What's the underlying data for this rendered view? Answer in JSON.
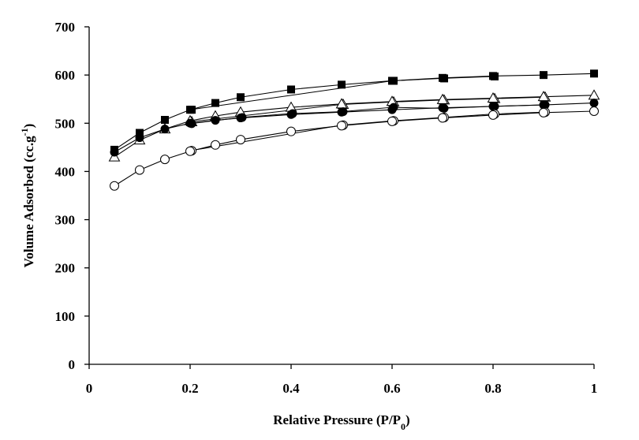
{
  "chart_data": {
    "type": "scatter",
    "title": "",
    "xlabel": "Relative Pressure (P/P",
    "xlabel_sub": "0",
    "xlabel_end": ")",
    "ylabel": "Volume Adsorbed (cc.g",
    "ylabel_sup": "-1",
    "ylabel_end": ")",
    "xlim": [
      0,
      1
    ],
    "ylim": [
      0,
      700
    ],
    "xticks": [
      0,
      0.2,
      0.4,
      0.6,
      0.8,
      1
    ],
    "xtick_labels": [
      "0",
      "0.2",
      "0.4",
      "0.6",
      "0.8",
      "1"
    ],
    "yticks": [
      0,
      100,
      200,
      300,
      400,
      500,
      600,
      700
    ],
    "ytick_labels": [
      "0",
      "100",
      "200",
      "300",
      "400",
      "500",
      "600",
      "700"
    ],
    "grid": false,
    "legend": "none",
    "series": [
      {
        "marker": "filled-square",
        "x": [
          0.05,
          0.1,
          0.15,
          0.2,
          0.25,
          0.3,
          0.4,
          0.5,
          0.6,
          0.7,
          0.8,
          0.9,
          1.0
        ],
        "y": [
          445,
          480,
          507,
          528,
          542,
          554,
          570,
          580,
          588,
          594,
          598,
          600,
          603
        ],
        "desorption_x": [
          0.2,
          0.6,
          0.7,
          0.8
        ],
        "desorption_y": [
          528,
          588,
          593,
          597
        ]
      },
      {
        "marker": "open-triangle",
        "x": [
          0.05,
          0.1,
          0.15,
          0.2,
          0.25,
          0.3,
          0.4,
          0.5,
          0.6,
          0.7,
          0.8,
          0.9,
          1.0
        ],
        "y": [
          430,
          465,
          488,
          505,
          515,
          523,
          533,
          540,
          545,
          549,
          552,
          555,
          558
        ],
        "desorption_x": [
          0.2,
          0.5,
          0.6,
          0.7,
          0.8,
          0.9
        ],
        "desorption_y": [
          503,
          539,
          544,
          548,
          551,
          554
        ]
      },
      {
        "marker": "filled-circle",
        "x": [
          0.05,
          0.1,
          0.15,
          0.2,
          0.25,
          0.3,
          0.4,
          0.5,
          0.6,
          0.7,
          0.8,
          0.9,
          1.0
        ],
        "y": [
          440,
          470,
          488,
          500,
          506,
          511,
          518,
          523,
          528,
          532,
          535,
          538,
          542
        ],
        "desorption_x": [
          0.2,
          0.3,
          0.4,
          0.5,
          0.6,
          0.7,
          0.8,
          0.9
        ],
        "desorption_y": [
          499,
          512,
          520,
          524,
          533,
          531,
          535,
          538
        ]
      },
      {
        "marker": "open-circle",
        "x": [
          0.05,
          0.1,
          0.15,
          0.2,
          0.25,
          0.3,
          0.4,
          0.5,
          0.6,
          0.7,
          0.8,
          0.9,
          1.0
        ],
        "y": [
          370,
          403,
          425,
          442,
          455,
          466,
          483,
          495,
          504,
          511,
          517,
          522,
          525
        ],
        "desorption_x": [
          0.2,
          0.5,
          0.6,
          0.7,
          0.8,
          0.9
        ],
        "desorption_y": [
          443,
          496,
          505,
          512,
          519,
          523
        ]
      }
    ]
  }
}
